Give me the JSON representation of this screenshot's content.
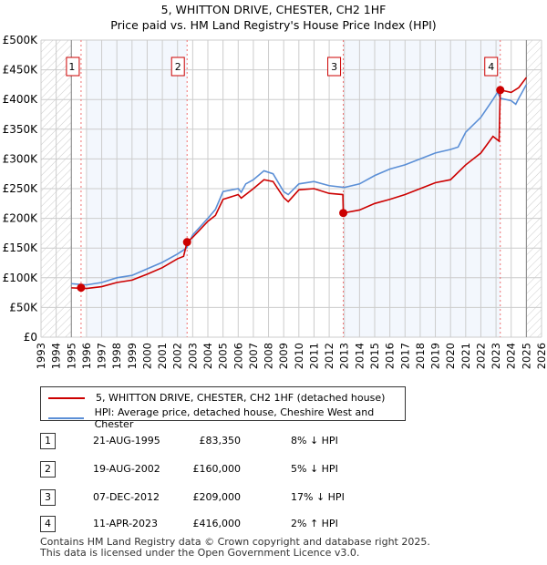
{
  "title": "5, WHITTON DRIVE, CHESTER, CH2 1HF",
  "subtitle": "Price paid vs. HM Land Registry's House Price Index (HPI)",
  "chart_data": {
    "type": "line",
    "xlim": [
      1993,
      2026
    ],
    "ylim": [
      0,
      500000
    ],
    "x_ticks": [
      "1993",
      "1994",
      "1995",
      "1996",
      "1997",
      "1998",
      "1999",
      "2000",
      "2001",
      "2002",
      "2003",
      "2004",
      "2005",
      "2006",
      "2007",
      "2008",
      "2009",
      "2010",
      "2011",
      "2012",
      "2013",
      "2014",
      "2015",
      "2016",
      "2017",
      "2018",
      "2019",
      "2020",
      "2021",
      "2022",
      "2023",
      "2024",
      "2025",
      "2026"
    ],
    "y_ticks": [
      {
        "v": 0,
        "label": "£0"
      },
      {
        "v": 50000,
        "label": "£50K"
      },
      {
        "v": 100000,
        "label": "£100K"
      },
      {
        "v": 150000,
        "label": "£150K"
      },
      {
        "v": 200000,
        "label": "£200K"
      },
      {
        "v": 250000,
        "label": "£250K"
      },
      {
        "v": 300000,
        "label": "£300K"
      },
      {
        "v": 350000,
        "label": "£350K"
      },
      {
        "v": 400000,
        "label": "£400K"
      },
      {
        "v": 450000,
        "label": "£450K"
      },
      {
        "v": 500000,
        "label": "£500K"
      }
    ],
    "grid": true,
    "hatched_ranges": [
      [
        1993,
        1995
      ],
      [
        2025,
        2026
      ]
    ],
    "shaded_ranges": [
      [
        1996,
        2002.63
      ],
      [
        2012.93,
        2023.28
      ]
    ],
    "colors": {
      "price": "#cc0000",
      "hpi": "#5b8fd6"
    },
    "series": [
      {
        "name": "5, WHITTON DRIVE, CHESTER, CH2 1HF (detached house)",
        "key": "price",
        "points": [
          [
            1995,
            83000
          ],
          [
            1996,
            82000
          ],
          [
            1997,
            85000
          ],
          [
            1998,
            92000
          ],
          [
            1999,
            96000
          ],
          [
            2000,
            106000
          ],
          [
            2001,
            117000
          ],
          [
            2002,
            132000
          ],
          [
            2002.4,
            136000
          ],
          [
            2002.63,
            160000
          ],
          [
            2003,
            168000
          ],
          [
            2004,
            195000
          ],
          [
            2004.5,
            205000
          ],
          [
            2005,
            232000
          ],
          [
            2006,
            240000
          ],
          [
            2006.2,
            234000
          ],
          [
            2007,
            250000
          ],
          [
            2007.7,
            265000
          ],
          [
            2008.3,
            262000
          ],
          [
            2009,
            235000
          ],
          [
            2009.3,
            228000
          ],
          [
            2010,
            248000
          ],
          [
            2011,
            250000
          ],
          [
            2012,
            242000
          ],
          [
            2012.9,
            240000
          ],
          [
            2012.93,
            209000
          ],
          [
            2014,
            214000
          ],
          [
            2015,
            225000
          ],
          [
            2016,
            232000
          ],
          [
            2017,
            240000
          ],
          [
            2018,
            250000
          ],
          [
            2019,
            260000
          ],
          [
            2020,
            265000
          ],
          [
            2021,
            290000
          ],
          [
            2022,
            310000
          ],
          [
            2022.8,
            338000
          ],
          [
            2023.2,
            330000
          ],
          [
            2023.28,
            416000
          ],
          [
            2024,
            412000
          ],
          [
            2024.5,
            420000
          ],
          [
            2025,
            437000
          ]
        ]
      },
      {
        "name": "HPI: Average price, detached house, Cheshire West and Chester",
        "key": "hpi",
        "points": [
          [
            1995,
            90000
          ],
          [
            1996,
            88000
          ],
          [
            1997,
            92000
          ],
          [
            1998,
            100000
          ],
          [
            1999,
            104000
          ],
          [
            2000,
            115000
          ],
          [
            2001,
            126000
          ],
          [
            2002,
            140000
          ],
          [
            2002.6,
            150000
          ],
          [
            2003,
            172000
          ],
          [
            2004,
            200000
          ],
          [
            2004.5,
            215000
          ],
          [
            2005,
            245000
          ],
          [
            2006,
            250000
          ],
          [
            2006.2,
            244000
          ],
          [
            2006.5,
            258000
          ],
          [
            2007,
            265000
          ],
          [
            2007.7,
            280000
          ],
          [
            2008.3,
            275000
          ],
          [
            2009,
            245000
          ],
          [
            2009.3,
            240000
          ],
          [
            2010,
            258000
          ],
          [
            2011,
            262000
          ],
          [
            2012,
            255000
          ],
          [
            2013,
            252000
          ],
          [
            2014,
            258000
          ],
          [
            2015,
            272000
          ],
          [
            2016,
            283000
          ],
          [
            2017,
            290000
          ],
          [
            2018,
            300000
          ],
          [
            2019,
            310000
          ],
          [
            2020,
            316000
          ],
          [
            2020.5,
            320000
          ],
          [
            2021,
            345000
          ],
          [
            2022,
            370000
          ],
          [
            2022.8,
            400000
          ],
          [
            2023.1,
            412000
          ],
          [
            2023.3,
            402000
          ],
          [
            2024,
            398000
          ],
          [
            2024.3,
            392000
          ],
          [
            2024.5,
            402000
          ],
          [
            2025,
            425000
          ]
        ]
      }
    ],
    "sales": [
      {
        "label": "1",
        "x": 2002.0,
        "t": 1995.64,
        "v": 83350
      },
      {
        "label": "2",
        "t": 2002.63,
        "v": 160000
      },
      {
        "label": "3",
        "t": 2012.93,
        "v": 209000
      },
      {
        "label": "4",
        "t": 2023.28,
        "v": 416000
      }
    ]
  },
  "legend": [
    {
      "label": "5, WHITTON DRIVE, CHESTER, CH2 1HF (detached house)",
      "color": "#cc0000"
    },
    {
      "label": "HPI: Average price, detached house, Cheshire West and Chester",
      "color": "#5b8fd6"
    }
  ],
  "transactions": [
    {
      "num": "1",
      "date": "21-AUG-1995",
      "price": "£83,350",
      "hpi": "8% ↓ HPI"
    },
    {
      "num": "2",
      "date": "19-AUG-2002",
      "price": "£160,000",
      "hpi": "5% ↓ HPI"
    },
    {
      "num": "3",
      "date": "07-DEC-2012",
      "price": "£209,000",
      "hpi": "17% ↓ HPI"
    },
    {
      "num": "4",
      "date": "11-APR-2023",
      "price": "£416,000",
      "hpi": "2% ↑ HPI"
    }
  ],
  "footer": [
    "Contains HM Land Registry data © Crown copyright and database right 2025.",
    "This data is licensed under the Open Government Licence v3.0."
  ]
}
